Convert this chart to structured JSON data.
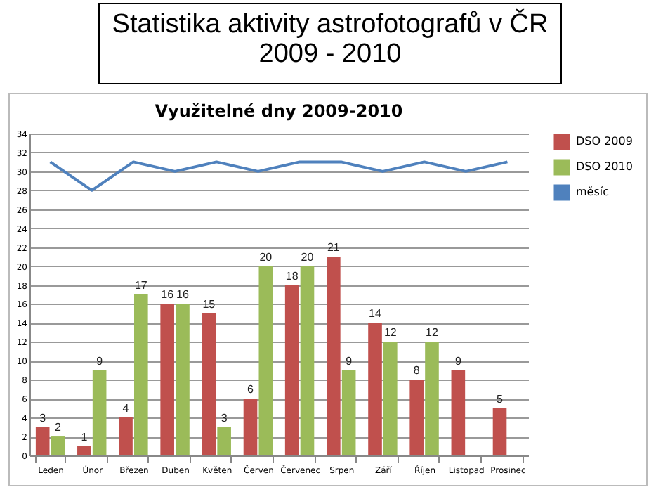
{
  "chart_data": {
    "type": "bar",
    "title": "Statistika aktivity astrofotografů v ČR 2009 - 2010",
    "subtitle": "Využitelné dny 2009-2010",
    "categories": [
      "Leden",
      "Únor",
      "Březen",
      "Duben",
      "Květen",
      "Červen",
      "Červenec",
      "Srpen",
      "Září",
      "Říjen",
      "Listopad",
      "Prosinec"
    ],
    "series": [
      {
        "name": "DSO 2009",
        "color": "#c0504d",
        "values": [
          3,
          1,
          4,
          16,
          15,
          6,
          18,
          21,
          14,
          8,
          9,
          5
        ],
        "value_labels": [
          "3",
          "1",
          "4",
          "16",
          "15",
          "6",
          "18",
          "21",
          "14",
          "8",
          "9",
          "5"
        ]
      },
      {
        "name": "DSO 2010",
        "color": "#9bbb59",
        "values": [
          2,
          9,
          17,
          16,
          3,
          20,
          20,
          9,
          12,
          12,
          null,
          null
        ],
        "value_labels": [
          "2",
          "9",
          "17",
          "16",
          "3",
          "20",
          "20",
          "9",
          "12",
          "12",
          null,
          null
        ]
      },
      {
        "name": "měsíc",
        "type": "line",
        "color": "#4f81bd",
        "values": [
          31,
          28,
          31,
          30,
          31,
          30,
          31,
          31,
          30,
          31,
          30,
          31
        ]
      }
    ],
    "ylim": [
      0,
      34
    ],
    "yticks": [
      0,
      2,
      4,
      6,
      8,
      10,
      12,
      14,
      16,
      18,
      20,
      22,
      24,
      26,
      28,
      30,
      32,
      34
    ],
    "grid": "y",
    "legend": "right"
  }
}
